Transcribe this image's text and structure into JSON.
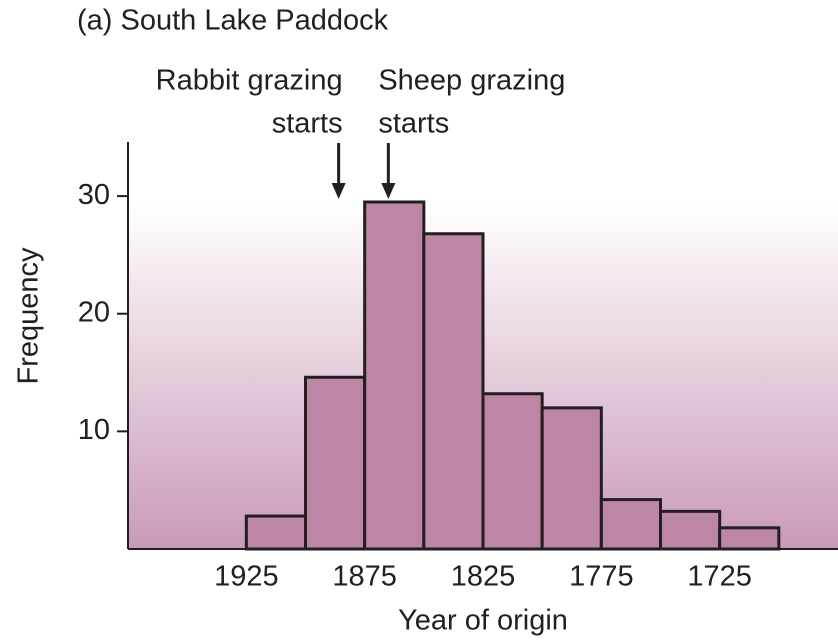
{
  "chart_data": {
    "type": "histogram",
    "title": "(a)  South Lake Paddock",
    "x_label": "Year of origin",
    "y_label": "Frequency",
    "bins": [
      1925,
      1900,
      1875,
      1850,
      1825,
      1800,
      1775,
      1750,
      1725,
      1700
    ],
    "counts": [
      2.8,
      14.6,
      29.5,
      26.8,
      13.2,
      12,
      4.2,
      3.2,
      1.8
    ],
    "color": "#bc86a4",
    "xlim": [
      1975,
      1675
    ],
    "ylim": [
      0,
      34.6
    ],
    "xticks": [
      1925,
      1875,
      1825,
      1775,
      1725
    ],
    "yticks": [
      10,
      20,
      30
    ],
    "annotations": [
      {
        "text": [
          "Rabbit grazing",
          "starts"
        ],
        "x": 1886
      },
      {
        "text": [
          "Sheep grazing",
          "starts"
        ],
        "x": 1865
      }
    ]
  }
}
